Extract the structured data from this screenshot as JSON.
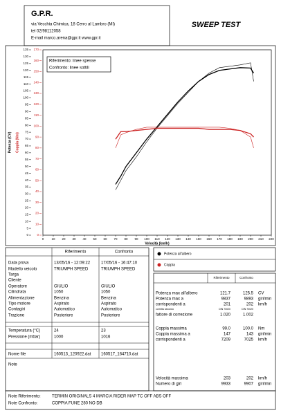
{
  "header": {
    "company": "G.P.R.",
    "address": "via Vecchia Chimica, 18 Cerro al Lambro (MI)",
    "phone": "tel 02/98112058",
    "contact": "E-mail marco.arena@gpr.it  www.gpr.it",
    "title": "SWEEP TEST"
  },
  "chart_data": {
    "type": "line",
    "x_label": "Velocità (km/h)",
    "y_label": "Potenza (CV)",
    "y2_label": "Coppia (Nm)",
    "annotation": [
      "Riferimento: linee spesse",
      "Confronto: linee sottili"
    ],
    "x": [
      70,
      75,
      80,
      90,
      100,
      110,
      120,
      130,
      140,
      150,
      160,
      170,
      180,
      190,
      200,
      203
    ],
    "series": [
      {
        "color": "#000000",
        "width": 1.3,
        "values": [
          37,
          43,
          50,
          60,
          70,
          79,
          88,
          97,
          105,
          112,
          117,
          120,
          121,
          122,
          121.7,
          118
        ]
      },
      {
        "color": "#000000",
        "width": 0.6,
        "values": [
          33,
          40,
          47,
          57,
          68,
          78,
          87,
          96,
          104,
          112,
          118,
          122,
          123,
          124,
          125.5,
          112
        ]
      },
      {
        "color": "#cc2222",
        "width": 1.3,
        "axis": "y2",
        "values": [
          88,
          95,
          95,
          96,
          97,
          98,
          98,
          98,
          98,
          98,
          97,
          97,
          97,
          96,
          93,
          90
        ]
      },
      {
        "color": "#cc2222",
        "width": 0.6,
        "axis": "y2",
        "values": [
          80,
          92,
          94,
          97,
          99,
          99,
          99,
          99,
          99,
          99,
          99,
          99,
          98,
          96,
          90,
          80
        ]
      }
    ],
    "legend": [
      {
        "label": "Potenza all'albero",
        "color": "#000000"
      },
      {
        "label": "Coppia",
        "color": "#cc2222"
      }
    ],
    "y2_color": "#cc2222",
    "xlim": [
      0,
      220
    ],
    "xticks": [
      0,
      10,
      20,
      30,
      40,
      50,
      60,
      70,
      80,
      90,
      100,
      110,
      120,
      130,
      140,
      150,
      160,
      170,
      180,
      190,
      200,
      210,
      220
    ],
    "ylim": [
      0,
      135
    ],
    "yticks": [
      0,
      5,
      10,
      15,
      20,
      25,
      30,
      35,
      40,
      45,
      50,
      55,
      60,
      65,
      70,
      75,
      80,
      85,
      90,
      95,
      100,
      105,
      110,
      115,
      120,
      125,
      130,
      135
    ],
    "y2lim": [
      0,
      170
    ],
    "y2ticks": [
      0,
      10,
      20,
      30,
      40,
      50,
      60,
      70,
      80,
      90,
      100,
      110,
      120,
      130,
      140,
      150,
      160,
      170
    ]
  },
  "info_table": {
    "headers": [
      "Riferimento",
      "Confronto"
    ],
    "rows": [
      [
        "Data prova",
        "13/05/16 - 12:09:22",
        "17/05/16 - 16:47:10"
      ],
      [
        "Modello veicolo",
        "TRIUMPH SPEED",
        "TRIUMPH SPEED"
      ],
      [
        "Targa"
      ],
      [
        "Cliente"
      ],
      [
        "Operatore",
        "GIULIO",
        "GIULIO"
      ],
      [
        "Cilindrata",
        "1050",
        "1050"
      ],
      [
        "Alimentazione",
        "Benzina",
        "Benzina"
      ],
      [
        "Tipo motore",
        "Aspirato",
        "Aspirato"
      ],
      [
        "Contagiri",
        "Automatico",
        "Automatico"
      ],
      [
        "Trazione",
        "Posteriore",
        "Posteriore"
      ],
      [
        "Temperatura (°C)",
        "24",
        "23"
      ],
      [
        "Pressione (mbar)",
        "1000",
        "1016"
      ],
      [
        "Nome file",
        "160513_120922.dat",
        "160517_164710.dat"
      ],
      [
        "Note"
      ]
    ]
  },
  "results_table": {
    "headers": [
      "Riferimento",
      "Confronto"
    ],
    "rows": [
      [
        "Potenza max all'albero",
        "121.7",
        "125.5",
        "CV"
      ],
      [
        "Potenza max a",
        "9837",
        "9893",
        "giri/min"
      ],
      [
        "corrispondenti a",
        "201",
        "202",
        "km/h"
      ],
      [
        "corretta secondo",
        "DIN 70020",
        "DIN 70020"
      ],
      [
        "fattore di correzione",
        "1.020",
        "1.002"
      ],
      [
        "Coppia massima",
        "99.0",
        "100.0",
        "Nm"
      ],
      [
        "Coppia massima a",
        "147",
        "143",
        "giri/min"
      ],
      [
        "corrispondenti a",
        "7209",
        "7025",
        "km/h"
      ],
      [
        "Velocità massima",
        "203",
        "202",
        "km/h"
      ],
      [
        "Numero di giri",
        "9933",
        "9907",
        "giri/min"
      ]
    ]
  },
  "notes": [
    [
      "Note Riferimento:",
      "TERMIN ORIGINALS 4 MARCIA RIDER MAP TC OFF ABS OFF"
    ],
    [
      "Note Confronto:",
      "COPPIA FUNE 280 NO DB"
    ]
  ]
}
